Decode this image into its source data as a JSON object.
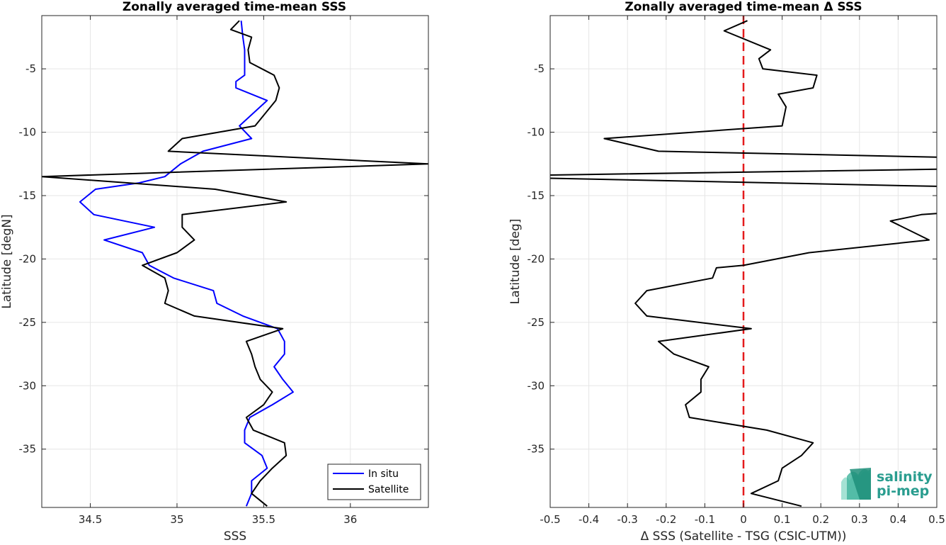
{
  "chart_data": [
    {
      "type": "line",
      "title": "Zonally averaged time-mean SSS",
      "xlabel": "SSS",
      "ylabel": "Latitude [degN]",
      "xlim": [
        34.22,
        36.45
      ],
      "ylim": [
        -39.6,
        -0.8
      ],
      "xticks": [
        34.5,
        35,
        35.5,
        36
      ],
      "xtick_labels": [
        "34.5",
        "35",
        "35.5",
        "36"
      ],
      "yticks": [
        -5,
        -10,
        -15,
        -20,
        -25,
        -30,
        -35
      ],
      "ytick_labels": [
        "-5",
        "-10",
        "-15",
        "-20",
        "-25",
        "-30",
        "-35"
      ],
      "grid": true,
      "legend_position": "bottom-right",
      "legend": [
        "In situ",
        "Satellite"
      ],
      "series": [
        {
          "name": "In situ",
          "color": "#0000ff",
          "points": [
            [
              35.37,
              -1.2
            ],
            [
              35.38,
              -2.5
            ],
            [
              35.39,
              -3.5
            ],
            [
              35.39,
              -4.5
            ],
            [
              35.39,
              -5.5
            ],
            [
              35.34,
              -6
            ],
            [
              35.34,
              -6.5
            ],
            [
              35.52,
              -7.5
            ],
            [
              35.36,
              -9.5
            ],
            [
              35.43,
              -10.5
            ],
            [
              35.15,
              -11.5
            ],
            [
              35.02,
              -12.5
            ],
            [
              34.93,
              -13.5
            ],
            [
              34.78,
              -14
            ],
            [
              34.53,
              -14.5
            ],
            [
              34.44,
              -15.5
            ],
            [
              34.52,
              -16.5
            ],
            [
              34.87,
              -17.5
            ],
            [
              34.58,
              -18.5
            ],
            [
              34.8,
              -19.5
            ],
            [
              34.84,
              -20.5
            ],
            [
              34.98,
              -21.5
            ],
            [
              35.21,
              -22.5
            ],
            [
              35.23,
              -23.5
            ],
            [
              35.38,
              -24.5
            ],
            [
              35.58,
              -25.5
            ],
            [
              35.62,
              -26.5
            ],
            [
              35.62,
              -27.5
            ],
            [
              35.56,
              -28.5
            ],
            [
              35.61,
              -29.5
            ],
            [
              35.67,
              -30.5
            ],
            [
              35.55,
              -31.5
            ],
            [
              35.42,
              -32.5
            ],
            [
              35.39,
              -33.5
            ],
            [
              35.39,
              -34.5
            ],
            [
              35.49,
              -35.5
            ],
            [
              35.52,
              -36.5
            ],
            [
              35.43,
              -37.5
            ],
            [
              35.43,
              -38.5
            ],
            [
              35.4,
              -39.5
            ]
          ]
        },
        {
          "name": "Satellite",
          "color": "#000000",
          "points": [
            [
              35.36,
              -1.2
            ],
            [
              35.31,
              -1.9
            ],
            [
              35.43,
              -2.5
            ],
            [
              35.41,
              -3.5
            ],
            [
              35.42,
              -4.5
            ],
            [
              35.56,
              -5.5
            ],
            [
              35.59,
              -6.5
            ],
            [
              35.57,
              -7.5
            ],
            [
              35.45,
              -9.5
            ],
            [
              35.03,
              -10.5
            ],
            [
              34.95,
              -11.5
            ],
            [
              36.45,
              -12.5
            ],
            [
              34.22,
              -13.5
            ],
            [
              35.22,
              -14.5
            ],
            [
              35.63,
              -15.5
            ],
            [
              35.03,
              -16.5
            ],
            [
              35.03,
              -17.5
            ],
            [
              35.1,
              -18.5
            ],
            [
              35.0,
              -19.5
            ],
            [
              34.8,
              -20.5
            ],
            [
              34.93,
              -21.5
            ],
            [
              34.95,
              -22.5
            ],
            [
              34.93,
              -23.5
            ],
            [
              35.1,
              -24.5
            ],
            [
              35.61,
              -25.5
            ],
            [
              35.4,
              -26.5
            ],
            [
              35.43,
              -27.5
            ],
            [
              35.45,
              -28.5
            ],
            [
              35.48,
              -29.5
            ],
            [
              35.55,
              -30.5
            ],
            [
              35.5,
              -31.5
            ],
            [
              35.4,
              -32.5
            ],
            [
              35.44,
              -33.5
            ],
            [
              35.62,
              -34.5
            ],
            [
              35.63,
              -35.5
            ],
            [
              35.55,
              -36.5
            ],
            [
              35.48,
              -37.5
            ],
            [
              35.43,
              -38.5
            ],
            [
              35.52,
              -39.5
            ]
          ]
        }
      ]
    },
    {
      "type": "line",
      "title": "Zonally averaged time-mean Δ SSS",
      "xlabel": "Δ SSS (Satellite - TSG (CSIC-UTM))",
      "ylabel": "Latitude [deg]",
      "xlim": [
        -0.5,
        0.5
      ],
      "ylim": [
        -39.6,
        -0.8
      ],
      "xticks": [
        -0.5,
        -0.4,
        -0.3,
        -0.2,
        -0.1,
        0,
        0.1,
        0.2,
        0.3,
        0.4,
        0.5
      ],
      "xtick_labels": [
        "-0.5",
        "-0.4",
        "-0.3",
        "-0.2",
        "-0.1",
        "0",
        "0.1",
        "0.2",
        "0.3",
        "0.4",
        "0.5"
      ],
      "yticks": [
        -5,
        -10,
        -15,
        -20,
        -25,
        -30,
        -35
      ],
      "ytick_labels": [
        "-5",
        "-10",
        "-15",
        "-20",
        "-25",
        "-30",
        "-35"
      ],
      "grid": true,
      "reference_line": {
        "x": 0,
        "color": "#e41a1c",
        "style": "dashed"
      },
      "series": [
        {
          "color": "#000000",
          "points": [
            [
              0.01,
              -1.2
            ],
            [
              -0.05,
              -2.0
            ],
            [
              0.07,
              -3.5
            ],
            [
              0.04,
              -4.2
            ],
            [
              0.05,
              -5.0
            ],
            [
              0.19,
              -5.5
            ],
            [
              0.18,
              -6.5
            ],
            [
              0.09,
              -7.0
            ],
            [
              0.11,
              -8.0
            ],
            [
              0.1,
              -9.5
            ],
            [
              -0.36,
              -10.5
            ],
            [
              -0.22,
              -11.5
            ],
            [
              0.55,
              -12.0
            ],
            [
              0.55,
              -12.9
            ],
            [
              -0.55,
              -13.4
            ],
            [
              -0.55,
              -13.6
            ],
            [
              0.55,
              -14.3
            ],
            [
              0.55,
              -16.3
            ],
            [
              0.46,
              -16.5
            ],
            [
              0.38,
              -17.0
            ],
            [
              0.48,
              -18.5
            ],
            [
              0.17,
              -19.5
            ],
            [
              0.0,
              -20.5
            ],
            [
              -0.07,
              -20.7
            ],
            [
              -0.08,
              -21.5
            ],
            [
              -0.25,
              -22.5
            ],
            [
              -0.28,
              -23.5
            ],
            [
              -0.25,
              -24.5
            ],
            [
              0.02,
              -25.5
            ],
            [
              -0.22,
              -26.5
            ],
            [
              -0.18,
              -27.5
            ],
            [
              -0.09,
              -28.5
            ],
            [
              -0.11,
              -29.5
            ],
            [
              -0.11,
              -30.5
            ],
            [
              -0.15,
              -31.5
            ],
            [
              -0.14,
              -32.5
            ],
            [
              0.06,
              -33.5
            ],
            [
              0.18,
              -34.5
            ],
            [
              0.15,
              -35.5
            ],
            [
              0.1,
              -36.5
            ],
            [
              0.09,
              -37.5
            ],
            [
              0.02,
              -38.5
            ],
            [
              0.15,
              -39.5
            ]
          ]
        }
      ]
    }
  ],
  "logo": {
    "line1": "salinity",
    "line2": "pi-mep",
    "color": "#2a9d8f"
  }
}
